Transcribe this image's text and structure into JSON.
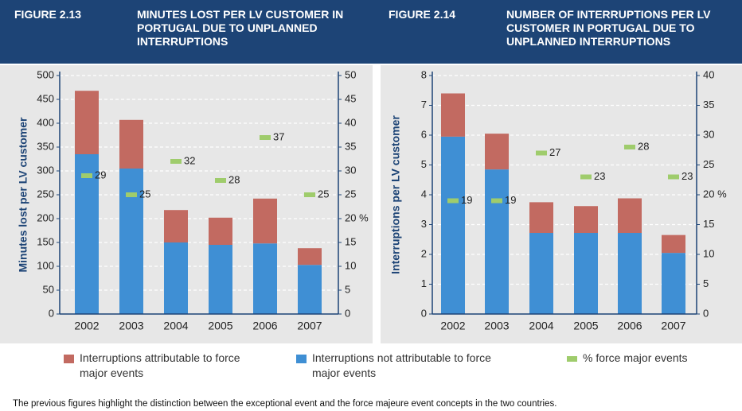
{
  "chart_data": [
    {
      "type": "bar",
      "stacked": true,
      "figure": "FIGURE 2.13",
      "title": "MINUTES LOST PER LV CUSTOMER IN PORTUGAL DUE TO UNPLANNED INTERRUPTIONS",
      "y_label": "Minutes lost per LV customer",
      "categories": [
        "2002",
        "2003",
        "2004",
        "2005",
        "2006",
        "2007"
      ],
      "series": [
        {
          "name": "Interruptions attributable to force major events",
          "color": "#c26a61",
          "values": [
            133,
            102,
            68,
            57,
            94,
            35
          ]
        },
        {
          "name": "Interruptions not attributable to force major events",
          "color": "#3f8fd4",
          "values": [
            335,
            305,
            150,
            145,
            148,
            103
          ]
        },
        {
          "name": "% force major events",
          "color": "#9fcc6c",
          "axis": "y2",
          "values": [
            29,
            25,
            32,
            28,
            37,
            25
          ]
        }
      ],
      "ylim": [
        0,
        500
      ],
      "yticks": [
        0,
        50,
        100,
        150,
        200,
        250,
        300,
        350,
        400,
        450,
        500
      ],
      "y2lim": [
        0,
        50
      ],
      "y2ticks": [
        0,
        5,
        10,
        15,
        {
          "value": 20,
          "label": "20 %"
        },
        25,
        30,
        35,
        40,
        45,
        50
      ],
      "grid": true
    },
    {
      "type": "bar",
      "stacked": true,
      "figure": "FIGURE 2.14",
      "title": "NUMBER OF INTERRUPTIONS PER LV CUSTOMER IN PORTUGAL DUE TO UNPLANNED INTERRUPTIONS",
      "y_label": "Interruptions per LV customer",
      "categories": [
        "2002",
        "2003",
        "2004",
        "2005",
        "2006",
        "2007"
      ],
      "series": [
        {
          "color": "#c26a61",
          "values": [
            1.45,
            1.2,
            1.03,
            0.9,
            1.16,
            0.6
          ]
        },
        {
          "color": "#3f8fd4",
          "values": [
            5.95,
            4.85,
            2.72,
            2.72,
            2.72,
            2.05
          ]
        },
        {
          "color": "#9fcc6c",
          "axis": "y2",
          "values": [
            19,
            19,
            27,
            23,
            28,
            23
          ]
        }
      ],
      "ylim": [
        0,
        8
      ],
      "yticks": [
        0,
        1,
        2,
        3,
        4,
        5,
        6,
        7,
        8
      ],
      "y2lim": [
        0,
        40
      ],
      "y2ticks": [
        0,
        5,
        10,
        15,
        {
          "value": 20,
          "label": "20 %"
        },
        25,
        30,
        35,
        40
      ],
      "grid": true
    }
  ],
  "footer": "The previous figures highlight the distinction between the exceptional event and the force majeure event concepts in the two countries."
}
